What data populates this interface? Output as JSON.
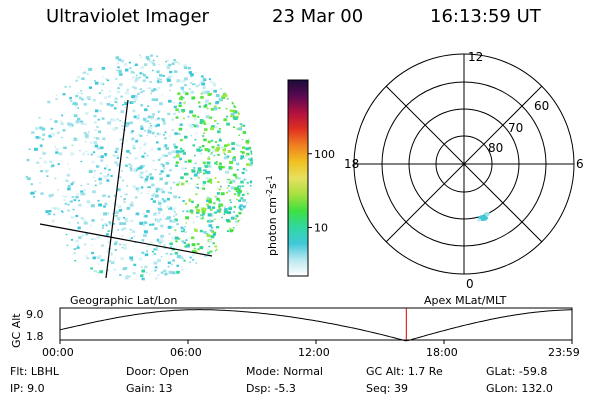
{
  "header": {
    "instrument": "Ultraviolet Imager",
    "date": "23 Mar 00",
    "time": "16:13:59 UT"
  },
  "colorbar": {
    "unit": "photon cm⁻²s⁻¹",
    "unit_base": "photon cm",
    "unit_exp1": "-2",
    "unit_mid": "s",
    "unit_exp2": "-1",
    "ticks": [
      {
        "label": "100",
        "value": 100
      },
      {
        "label": "10",
        "value": 10
      }
    ],
    "colors_top_to_bottom": [
      "#1a0a3a",
      "#5a0a50",
      "#b01040",
      "#e03020",
      "#f08020",
      "#f0c020",
      "#e8e060",
      "#a8e040",
      "#40e040",
      "#30d8a0",
      "#40c8d8",
      "#b8e8f0",
      "#ffffff"
    ]
  },
  "polar_plot": {
    "lat_rings": [
      "80",
      "70",
      "60"
    ],
    "mlt_labels": {
      "top": "12",
      "left": "18",
      "right": "6",
      "bottom": "0"
    }
  },
  "left_image": {
    "caption": "Geographic Lat/Lon"
  },
  "right_image": {
    "caption": "Apex MLat/MLT"
  },
  "altitude_strip": {
    "ylabel": "GC Alt",
    "y_ticks": [
      "9.0",
      "1.8"
    ],
    "x_ticks": [
      "00:00",
      "06:00",
      "12:00",
      "18:00",
      "23:59"
    ],
    "marker_time": "16:13:59",
    "line_color": "#000000",
    "marker_color": "#cc0000"
  },
  "status": {
    "row1": [
      {
        "label": "Flt:",
        "value": "LBHL"
      },
      {
        "label": "Door:",
        "value": "Open"
      },
      {
        "label": "Mode:",
        "value": "Normal"
      },
      {
        "label": "GC Alt:",
        "value": "1.7 Re"
      },
      {
        "label": "GLat:",
        "value": "-59.8"
      }
    ],
    "row2": [
      {
        "label": "IP:",
        "value": "9.0"
      },
      {
        "label": "Gain:",
        "value": "13"
      },
      {
        "label": "Dsp:",
        "value": "-5.3"
      },
      {
        "label": "Seq:",
        "value": "39"
      },
      {
        "label": "GLon:",
        "value": "132.0"
      }
    ]
  }
}
